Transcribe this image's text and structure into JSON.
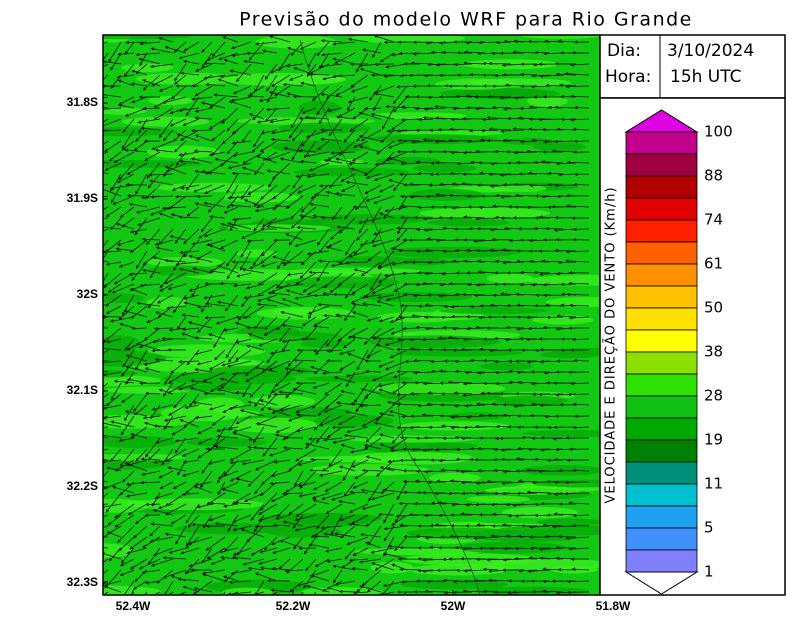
{
  "title": "Previsão do modelo WRF para Rio Grande",
  "info": {
    "day_label": "Dia:",
    "day": "3/10/2024",
    "hour_label": "Hora:",
    "hour": "15h UTC"
  },
  "axes": {
    "y_labels": [
      "31.8S",
      "31.9S",
      "32S",
      "32.1S",
      "32.2S",
      "32.3S"
    ],
    "x_labels": [
      "52.4W",
      "52.2W",
      "52W",
      "51.8W"
    ]
  },
  "colorbar": {
    "title": "VELOCIDADE E DIREÇÃO DO VENTO (Km/h)",
    "labels": [
      "100",
      "88",
      "74",
      "61",
      "50",
      "38",
      "28",
      "19",
      "11",
      "5",
      "1"
    ],
    "top_color": "#e000e0",
    "colors": [
      "#c0008a",
      "#a00040",
      "#b00000",
      "#e00000",
      "#ff2000",
      "#ff6000",
      "#ff9000",
      "#ffc000",
      "#ffe000",
      "#ffff00",
      "#8ce000",
      "#30e000",
      "#10c010",
      "#00a800",
      "#008000",
      "#00907a",
      "#00c0d0",
      "#20a0f0",
      "#4090ff",
      "#8080ff"
    ]
  }
}
